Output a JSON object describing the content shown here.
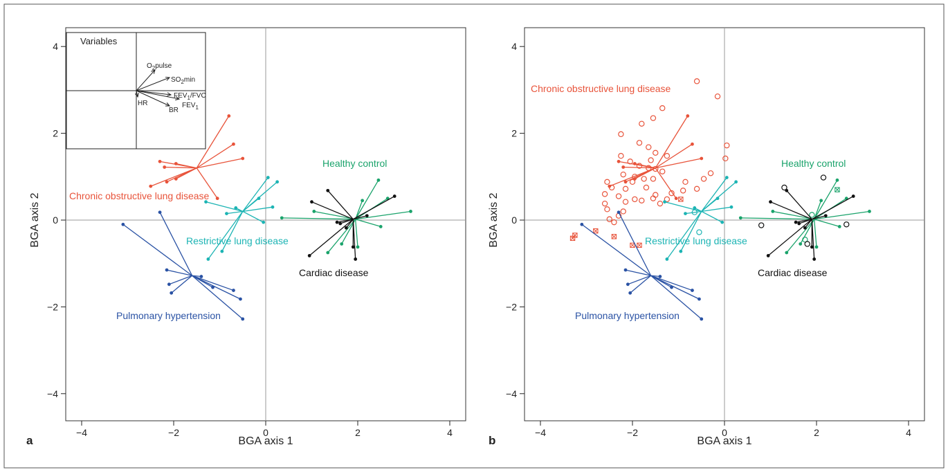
{
  "colors": {
    "copd": "#e8533a",
    "restrictive": "#1cb4b4",
    "healthy": "#1aa36b",
    "cardiac": "#111111",
    "ph": "#2a52a4",
    "axis": "#999999",
    "frame": "#555555"
  },
  "panels": [
    {
      "panel_label": "a",
      "xlabel": "BGA axis 1",
      "ylabel": "BGA axis 2",
      "group_labels": {
        "copd": "Chronic obstructive lung disease",
        "restrictive": "Restrictive lung disease",
        "healthy": "Healthy control",
        "cardiac": "Cardiac disease",
        "ph": "Pulmonary hypertension"
      },
      "inset": {
        "title": "Variables",
        "labels": [
          "O2pulse",
          "SO2min",
          "FEV1/FVC",
          "FEV1",
          "BR",
          "HR"
        ]
      }
    },
    {
      "panel_label": "b",
      "xlabel": "BGA axis 1",
      "ylabel": "BGA axis 2",
      "group_labels": {
        "copd": "Chronic obstructive lung disease",
        "restrictive": "Restrictive lung disease",
        "healthy": "Healthy control",
        "cardiac": "Cardiac disease",
        "ph": "Pulmonary hypertension"
      }
    }
  ],
  "chart_data": [
    {
      "type": "scatter",
      "panel": "a",
      "xlabel": "BGA axis 1",
      "ylabel": "BGA axis 2",
      "xlim": [
        -4.4,
        4.4
      ],
      "ylim": [
        -4.4,
        4.4
      ],
      "xticks": [
        -4,
        -2,
        0,
        2,
        4
      ],
      "yticks": [
        -4,
        -2,
        0,
        2,
        4
      ],
      "tick_labels": [
        "−4",
        "−2",
        "0",
        "2",
        "4"
      ],
      "reference_lines": {
        "x": 0,
        "y": 0
      },
      "series": [
        {
          "name": "Chronic obstructive lung disease",
          "color_key": "copd",
          "centroid": [
            -1.5,
            1.2
          ],
          "points": [
            [
              -0.8,
              2.4
            ],
            [
              -0.7,
              1.75
            ],
            [
              -0.5,
              1.42
            ],
            [
              -2.3,
              1.35
            ],
            [
              -1.95,
              1.3
            ],
            [
              -2.2,
              1.22
            ],
            [
              -2.15,
              0.88
            ],
            [
              -1.95,
              0.95
            ],
            [
              -2.5,
              0.78
            ],
            [
              -1.05,
              0.5
            ]
          ]
        },
        {
          "name": "Restrictive lung disease",
          "color_key": "restrictive",
          "centroid": [
            -0.5,
            0.2
          ],
          "points": [
            [
              0.05,
              0.98
            ],
            [
              0.25,
              0.88
            ],
            [
              -0.15,
              0.5
            ],
            [
              -1.3,
              0.42
            ],
            [
              -0.65,
              0.28
            ],
            [
              0.15,
              0.3
            ],
            [
              -0.85,
              0.15
            ],
            [
              -0.05,
              -0.05
            ],
            [
              -1.25,
              -0.9
            ],
            [
              -0.95,
              -0.72
            ]
          ]
        },
        {
          "name": "Healthy control",
          "color_key": "healthy",
          "centroid": [
            1.95,
            0.02
          ],
          "points": [
            [
              2.45,
              0.92
            ],
            [
              2.65,
              0.5
            ],
            [
              2.1,
              0.45
            ],
            [
              3.15,
              0.2
            ],
            [
              1.05,
              0.2
            ],
            [
              0.35,
              0.05
            ],
            [
              2.5,
              -0.15
            ],
            [
              1.65,
              -0.55
            ],
            [
              1.35,
              -0.75
            ],
            [
              2.0,
              -0.62
            ]
          ]
        },
        {
          "name": "Cardiac disease",
          "color_key": "cardiac",
          "centroid": [
            1.9,
            0.02
          ],
          "points": [
            [
              1.35,
              0.68
            ],
            [
              2.8,
              0.55
            ],
            [
              1.0,
              0.42
            ],
            [
              2.2,
              0.1
            ],
            [
              1.55,
              -0.05
            ],
            [
              1.62,
              -0.08
            ],
            [
              1.75,
              -0.18
            ],
            [
              1.9,
              -0.62
            ],
            [
              1.95,
              -0.9
            ],
            [
              0.95,
              -0.82
            ]
          ]
        },
        {
          "name": "Pulmonary hypertension",
          "color_key": "ph",
          "centroid": [
            -1.6,
            -1.28
          ],
          "points": [
            [
              -3.1,
              -0.1
            ],
            [
              -2.3,
              0.18
            ],
            [
              -2.15,
              -1.15
            ],
            [
              -1.4,
              -1.3
            ],
            [
              -2.1,
              -1.48
            ],
            [
              -2.05,
              -1.68
            ],
            [
              -1.15,
              -1.55
            ],
            [
              -0.7,
              -1.62
            ],
            [
              -0.55,
              -1.82
            ],
            [
              -0.5,
              -2.28
            ]
          ]
        }
      ],
      "inset_vectors": [
        {
          "label": "O2pulse",
          "dx": 27,
          "dy": -30
        },
        {
          "label": "SO2min",
          "dx": 48,
          "dy": -19
        },
        {
          "label": "FEV1/FVC",
          "dx": 50,
          "dy": 6
        },
        {
          "label": "FEV1",
          "dx": 62,
          "dy": 12
        },
        {
          "label": "BR",
          "dx": 48,
          "dy": 22
        },
        {
          "label": "HR",
          "dx": 2,
          "dy": 9
        }
      ]
    },
    {
      "type": "scatter",
      "panel": "b",
      "xlabel": "BGA axis 1",
      "ylabel": "BGA axis 2",
      "xlim": [
        -4.4,
        4.4
      ],
      "ylim": [
        -4.4,
        4.4
      ],
      "xticks": [
        -4,
        -2,
        0,
        2,
        4
      ],
      "yticks": [
        -4,
        -2,
        0,
        2,
        4
      ],
      "tick_labels": [
        "−4",
        "−2",
        "0",
        "2",
        "4"
      ],
      "reference_lines": {
        "x": 0,
        "y": 0
      },
      "series": [
        {
          "name": "Chronic obstructive lung disease",
          "color_key": "copd",
          "centroid": [
            -1.5,
            1.2
          ],
          "points": [
            [
              -0.8,
              2.4
            ],
            [
              -0.7,
              1.75
            ],
            [
              -0.5,
              1.42
            ],
            [
              -2.3,
              1.35
            ],
            [
              -1.95,
              1.3
            ],
            [
              -2.2,
              1.22
            ],
            [
              -2.15,
              0.88
            ],
            [
              -1.95,
              0.95
            ],
            [
              -2.5,
              0.78
            ],
            [
              -1.05,
              0.5
            ]
          ]
        },
        {
          "name": "Restrictive lung disease",
          "color_key": "restrictive",
          "centroid": [
            -0.5,
            0.2
          ],
          "points": [
            [
              0.05,
              0.98
            ],
            [
              0.25,
              0.88
            ],
            [
              -0.15,
              0.5
            ],
            [
              -1.3,
              0.42
            ],
            [
              -0.65,
              0.28
            ],
            [
              0.15,
              0.3
            ],
            [
              -0.85,
              0.15
            ],
            [
              -0.05,
              -0.05
            ],
            [
              -1.25,
              -0.9
            ],
            [
              -0.95,
              -0.72
            ]
          ]
        },
        {
          "name": "Healthy control",
          "color_key": "healthy",
          "centroid": [
            1.95,
            0.02
          ],
          "points": [
            [
              2.45,
              0.92
            ],
            [
              2.65,
              0.5
            ],
            [
              2.1,
              0.45
            ],
            [
              3.15,
              0.2
            ],
            [
              1.05,
              0.2
            ],
            [
              0.35,
              0.05
            ],
            [
              2.5,
              -0.15
            ],
            [
              1.65,
              -0.55
            ],
            [
              1.35,
              -0.75
            ],
            [
              2.0,
              -0.62
            ]
          ]
        },
        {
          "name": "Cardiac disease",
          "color_key": "cardiac",
          "centroid": [
            1.9,
            0.02
          ],
          "points": [
            [
              1.35,
              0.68
            ],
            [
              2.8,
              0.55
            ],
            [
              1.0,
              0.42
            ],
            [
              2.2,
              0.1
            ],
            [
              1.55,
              -0.05
            ],
            [
              1.62,
              -0.08
            ],
            [
              1.75,
              -0.18
            ],
            [
              1.9,
              -0.62
            ],
            [
              1.95,
              -0.9
            ],
            [
              0.95,
              -0.82
            ]
          ]
        },
        {
          "name": "Pulmonary hypertension",
          "color_key": "ph",
          "centroid": [
            -1.6,
            -1.28
          ],
          "points": [
            [
              -3.1,
              -0.1
            ],
            [
              -2.3,
              0.18
            ],
            [
              -2.15,
              -1.15
            ],
            [
              -1.4,
              -1.3
            ],
            [
              -2.1,
              -1.48
            ],
            [
              -2.05,
              -1.68
            ],
            [
              -1.15,
              -1.55
            ],
            [
              -0.7,
              -1.62
            ],
            [
              -0.55,
              -1.82
            ],
            [
              -0.5,
              -2.28
            ]
          ]
        }
      ],
      "open_points": [
        {
          "color_key": "copd",
          "points": [
            [
              -0.6,
              3.2
            ],
            [
              -0.15,
              2.85
            ],
            [
              -1.35,
              2.58
            ],
            [
              -1.55,
              2.35
            ],
            [
              -1.8,
              2.22
            ],
            [
              -2.25,
              1.98
            ],
            [
              -1.85,
              1.78
            ],
            [
              -1.65,
              1.68
            ],
            [
              -1.5,
              1.55
            ],
            [
              0.05,
              1.72
            ],
            [
              -1.25,
              1.48
            ],
            [
              -2.25,
              1.48
            ],
            [
              -1.6,
              1.38
            ],
            [
              -2.05,
              1.35
            ],
            [
              0.02,
              1.42
            ],
            [
              -1.85,
              1.25
            ],
            [
              -1.65,
              1.2
            ],
            [
              -1.5,
              1.18
            ],
            [
              -1.35,
              1.12
            ],
            [
              -2.2,
              1.05
            ],
            [
              -1.95,
              1.0
            ],
            [
              -1.75,
              0.95
            ],
            [
              -1.55,
              0.95
            ],
            [
              -2.55,
              0.88
            ],
            [
              -2.0,
              0.88
            ],
            [
              -0.3,
              1.08
            ],
            [
              -0.45,
              0.95
            ],
            [
              -2.45,
              0.75
            ],
            [
              -2.15,
              0.72
            ],
            [
              -1.7,
              0.75
            ],
            [
              -0.85,
              0.88
            ],
            [
              -0.6,
              0.72
            ],
            [
              -2.6,
              0.6
            ],
            [
              -2.3,
              0.55
            ],
            [
              -1.5,
              0.58
            ],
            [
              -1.15,
              0.62
            ],
            [
              -0.9,
              0.68
            ],
            [
              -1.95,
              0.48
            ],
            [
              -1.8,
              0.45
            ],
            [
              -1.55,
              0.5
            ],
            [
              -1.25,
              0.48
            ],
            [
              -2.6,
              0.38
            ],
            [
              -2.15,
              0.42
            ],
            [
              -1.4,
              0.38
            ],
            [
              -2.55,
              0.25
            ],
            [
              -2.2,
              0.2
            ],
            [
              -2.5,
              0.02
            ],
            [
              -2.3,
              0.1
            ],
            [
              -2.4,
              -0.05
            ]
          ]
        },
        {
          "color_key": "restrictive",
          "points": [
            [
              -0.55,
              -0.28
            ],
            [
              -0.65,
              0.18
            ]
          ]
        },
        {
          "color_key": "healthy",
          "points": [
            [
              1.9,
              0.12
            ],
            [
              1.75,
              -0.45
            ]
          ]
        },
        {
          "color_key": "cardiac",
          "points": [
            [
              1.3,
              0.75
            ],
            [
              2.15,
              0.98
            ],
            [
              0.8,
              -0.12
            ],
            [
              2.65,
              -0.1
            ],
            [
              1.8,
              -0.55
            ]
          ]
        }
      ],
      "crossed_squares": [
        {
          "color_key": "copd",
          "points": [
            [
              -3.25,
              -0.35
            ],
            [
              -3.3,
              -0.42
            ],
            [
              -2.8,
              -0.25
            ],
            [
              -2.4,
              -0.38
            ],
            [
              -2.0,
              -0.58
            ],
            [
              -1.85,
              -0.58
            ],
            [
              -0.95,
              0.48
            ]
          ]
        },
        {
          "color_key": "healthy",
          "points": [
            [
              2.45,
              0.7
            ]
          ]
        }
      ]
    }
  ]
}
